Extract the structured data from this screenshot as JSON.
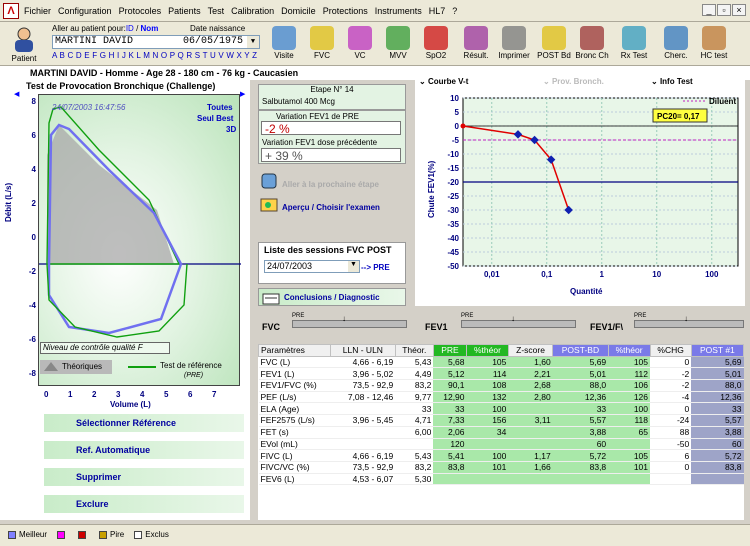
{
  "menu": {
    "items": [
      "Fichier",
      "Configuration",
      "Protocoles",
      "Patients",
      "Test",
      "Calibration",
      "Domicile",
      "Protections",
      "Instruments",
      "HL7",
      "?"
    ]
  },
  "toolbar": {
    "patient_label": "Patient",
    "search_label": "Aller au patient pour:",
    "id_label": "ID",
    "slash": "/",
    "nom_label": "Nom",
    "dob_label": "Date naissance",
    "patient_name": "MARTINI DAVID",
    "patient_dob": "06/05/1975",
    "alphabet": "A B C D E F G H I J K L M N O P Q R S T U V W X Y Z",
    "buttons": [
      "Visite",
      "FVC",
      "VC",
      "MVV",
      "SpO2",
      "Résult.",
      "Imprimer",
      "POST Bd",
      "Bronc Ch",
      "Rx Test",
      "Cherc.",
      "HC test"
    ]
  },
  "patient_info": "MARTINI DAVID - Homme - Age 28 - 180 cm - 76 kg - Caucasien",
  "left": {
    "title": "Test de Provocation Bronchique (Challenge)",
    "timestamp": "24/07/2003 16:47:56",
    "toutes": "Toutes",
    "seul_best": "Seul Best",
    "mode_3d": "3D",
    "ylabel": "Débit (L/s)",
    "xlabel": "Volume (L)",
    "qc": "Niveau de contrôle qualité F",
    "legend_theo": "Théoriques",
    "legend_ref": "Test de référence",
    "legend_ref_sub": "(PRE)",
    "yticks": [
      "8",
      "6",
      "4",
      "2",
      "0",
      "-2",
      "-4",
      "-6",
      "-8"
    ],
    "xticks": [
      "0",
      "1",
      "2",
      "3",
      "4",
      "5",
      "6",
      "7"
    ],
    "actions": [
      "Sélectionner Référence",
      "Ref. Automatique",
      "Supprimer",
      "Exclure"
    ]
  },
  "mid": {
    "etape": "Etape N° 14",
    "drug": "Salbutamol 400 Mcg",
    "var_pre_label": "Variation FEV1 de PRE",
    "var_pre": "-2 %",
    "var_prev_label": "Variation FEV1 dose précédente",
    "var_prev": "+ 39 %",
    "next_step": "Aller à la prochaine étape",
    "apercu": "Aperçu / Choisir l'examen",
    "sessions_label": "Liste des sessions FVC  POST",
    "session_date": "24/07/2003",
    "pre_link": "--> PRE",
    "conclusions": "Conclusions / Diagnostic"
  },
  "right": {
    "tabs": [
      "Courbe V-t",
      "Prov. Bronch.",
      "Info Test"
    ],
    "diluent": "Diluent",
    "pc20": "PC20= 0,17",
    "ylabel": "Chute FEV1(%)",
    "xlabel": "Quantité",
    "yticks": [
      "10",
      "5",
      "0",
      "-5",
      "-10",
      "-15",
      "-20",
      "-25",
      "-30",
      "-35",
      "-40",
      "-45",
      "-50"
    ],
    "xticks": [
      "0,01",
      "0,1",
      "1",
      "10",
      "100"
    ]
  },
  "chart_data": {
    "type": "line",
    "title": "",
    "xlabel": "Quantité",
    "ylabel": "Chute FEV1(%)",
    "x_scale": "log",
    "xlim": [
      0.003,
      300
    ],
    "ylim": [
      -50,
      10
    ],
    "series": [
      {
        "name": "",
        "x": [
          0.003,
          0.03,
          0.06,
          0.12,
          0.25
        ],
        "y": [
          0,
          -3,
          -5,
          -12,
          -30
        ]
      }
    ],
    "reference_lines": [
      {
        "y": -20
      },
      {
        "y": -5
      }
    ],
    "pc20": 0.17
  },
  "slider_labels": {
    "fvc": "FVC",
    "fev1": "FEV1",
    "fev1f": "FEV1/F\\",
    "pre": "PRE"
  },
  "table": {
    "headers": [
      "Paramètres",
      "LLN - ULN",
      "Théor.",
      "PRE",
      "%théor",
      "Z-score",
      "POST-BD",
      "%théor",
      "%CHG",
      "POST #1"
    ],
    "rows": [
      [
        "FVC (L)",
        "4,66 - 6,19",
        "5,43",
        "5,68",
        "105",
        "1,60",
        "5,69",
        "105",
        "0",
        "5,69"
      ],
      [
        "FEV1 (L)",
        "3,96 - 5,02",
        "4,49",
        "5,12",
        "114",
        "2,21",
        "5,01",
        "112",
        "-2",
        "5,01"
      ],
      [
        "FEV1/FVC (%)",
        "73,5 - 92,9",
        "83,2",
        "90,1",
        "108",
        "2,68",
        "88,0",
        "106",
        "-2",
        "88,0"
      ],
      [
        "PEF (L/s)",
        "7,08 - 12,46",
        "9,77",
        "12,90",
        "132",
        "2,80",
        "12,36",
        "126",
        "-4",
        "12,36"
      ],
      [
        "ELA (Age)",
        "",
        "33",
        "33",
        "100",
        "",
        "33",
        "100",
        "0",
        "33"
      ],
      [
        "FEF2575 (L/s)",
        "3,96 - 5,45",
        "4,71",
        "7,33",
        "156",
        "3,11",
        "5,57",
        "118",
        "-24",
        "5,57"
      ],
      [
        "FET (s)",
        "",
        "6,00",
        "2,06",
        "34",
        "",
        "3,88",
        "65",
        "88",
        "3,88"
      ],
      [
        "EVol (mL)",
        "",
        "",
        "120",
        "",
        "",
        "60",
        "",
        "-50",
        "60"
      ],
      [
        "FIVC (L)",
        "4,66 - 6,19",
        "5,43",
        "5,41",
        "100",
        "1,17",
        "5,72",
        "105",
        "6",
        "5,72"
      ],
      [
        "FIVC/VC (%)",
        "73,5 - 92,9",
        "83,2",
        "83,8",
        "101",
        "1,66",
        "83,8",
        "101",
        "0",
        "83,8"
      ],
      [
        "FEV6 (L)",
        "4,53 - 6,07",
        "5,30",
        "",
        "",
        "",
        "",
        "",
        "",
        ""
      ]
    ]
  },
  "status": {
    "items": [
      "Meilleur",
      "",
      "",
      "Pire",
      "Exclus"
    ],
    "colors": [
      "#8080ff",
      "#ff00ff",
      "#cc0000",
      "#c8a000",
      "#ffffff"
    ]
  }
}
